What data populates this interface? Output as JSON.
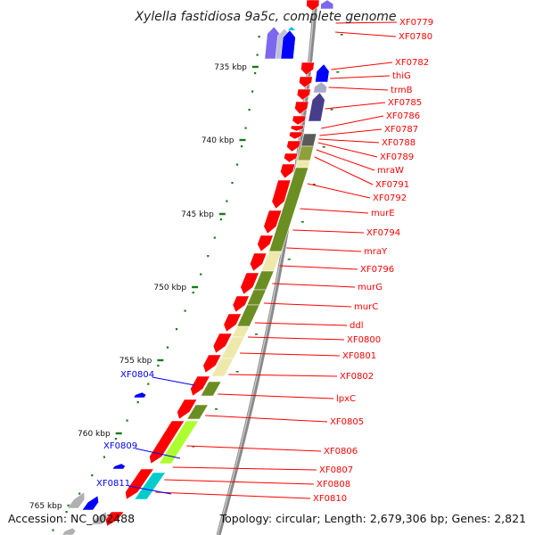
{
  "title": "Xylella fastidiosa 9a5c, complete genome",
  "accession": "Accession: NC_002488",
  "topology": "Topology: circular; Length: 2,679,306 bp; Genes: 2,821",
  "colors": {
    "forward_gene": "#ff0000",
    "reverse_gene": "#0000ff",
    "axis": "#888888",
    "tick": "#1a7a1a",
    "green_feature": "#6b8e23",
    "yellow_feature": "#eee8aa",
    "cyan_feature": "#00cccc",
    "slate_feature": "#483d8b"
  },
  "scale": {
    "unit": "kbp",
    "ticks": [
      {
        "label": "735 kbp"
      },
      {
        "label": "740 kbp"
      },
      {
        "label": "745 kbp"
      },
      {
        "label": "750 kbp"
      },
      {
        "label": "755 kbp"
      },
      {
        "label": "760 kbp"
      },
      {
        "label": "765 kbp"
      }
    ]
  },
  "right_labels": [
    "XF0779",
    "XF0780",
    "XF0782",
    "thiG",
    "trmB",
    "XF0785",
    "XF0786",
    "XF0787",
    "XF0788",
    "XF0789",
    "mraW",
    "XF0791",
    "XF0792",
    "murE",
    "XF0794",
    "mraY",
    "XF0796",
    "murG",
    "murC",
    "ddl",
    "XF0800",
    "XF0801",
    "XF0802",
    "lpxC",
    "XF0805",
    "XF0806",
    "XF0807",
    "XF0808",
    "XF0810"
  ],
  "left_labels": [
    "XF0804",
    "XF0809",
    "XF0811"
  ]
}
